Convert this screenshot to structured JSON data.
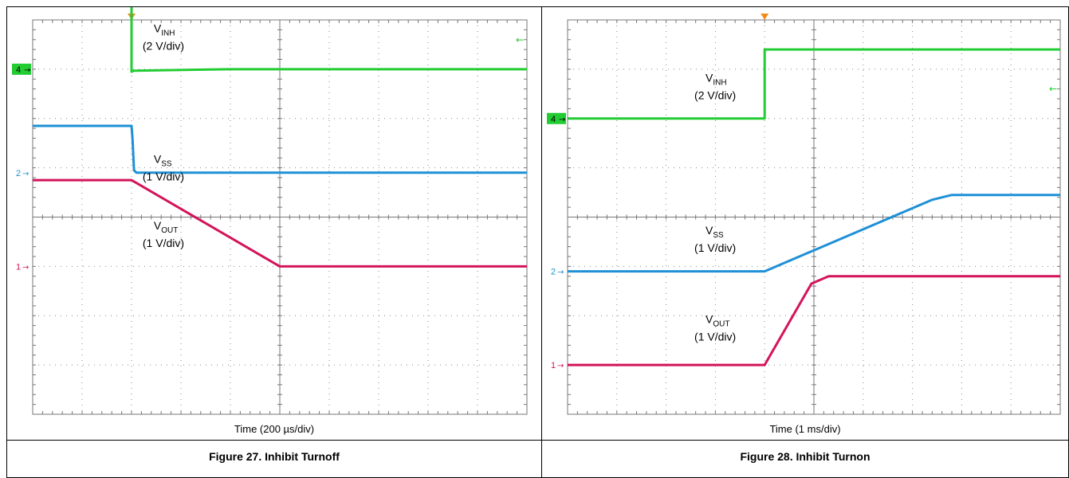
{
  "chart_data": [
    {
      "type": "line",
      "title": "Figure 27. Inhibit Turnoff",
      "xlabel": "Time (200 µs/div)",
      "x_divisions": 10,
      "y_divisions": 8,
      "trigger_position_div": 2,
      "channel_markers": [
        {
          "label": "4",
          "level_div": 1.0,
          "color": "#22cc33"
        },
        {
          "label": "2",
          "level_div": 3.1,
          "color": "#1e90d6"
        },
        {
          "label": "1",
          "level_div": 5.0,
          "color": "#d4145a"
        }
      ],
      "series": [
        {
          "name": "V_INH",
          "scale": "(2 V/div)",
          "color": "#22cc33",
          "x": [
            0,
            2,
            2,
            2.05,
            4,
            10
          ],
          "y": [
            -0.35,
            -0.35,
            1.05,
            1.03,
            1.0,
            1.0
          ]
        },
        {
          "name": "V_SS",
          "scale": "(1 V/div)",
          "color": "#1e90d6",
          "x": [
            0,
            2,
            2.02,
            2.05,
            2.1,
            10
          ],
          "y": [
            2.15,
            2.15,
            2.4,
            3.05,
            3.1,
            3.1
          ]
        },
        {
          "name": "V_OUT",
          "scale": "(1 V/div)",
          "color": "#d4145a",
          "x": [
            0,
            2,
            5,
            10
          ],
          "y": [
            3.25,
            3.25,
            5.0,
            5.0
          ]
        }
      ],
      "annotations": [
        {
          "sym": "V",
          "sub": "INH",
          "scale": "(2 V/div)",
          "x_div": 2.45,
          "y_div": 0.25
        },
        {
          "sym": "V",
          "sub": "SS",
          "scale": "(1 V/div)",
          "x_div": 2.45,
          "y_div": 2.9
        },
        {
          "sym": "V",
          "sub": "OUT",
          "scale": "(1 V/div)",
          "x_div": 2.45,
          "y_div": 4.25
        }
      ]
    },
    {
      "type": "line",
      "title": "Figure 28. Inhibit Turnon",
      "xlabel": "Time (1 ms/div)",
      "x_divisions": 10,
      "y_divisions": 8,
      "trigger_position_div": 4,
      "channel_markers": [
        {
          "label": "4",
          "level_div": 2.0,
          "color": "#22cc33"
        },
        {
          "label": "2",
          "level_div": 5.1,
          "color": "#1e90d6"
        },
        {
          "label": "1",
          "level_div": 7.0,
          "color": "#d4145a"
        }
      ],
      "series": [
        {
          "name": "V_INH",
          "scale": "(2 V/div)",
          "color": "#22cc33",
          "x": [
            0,
            4,
            4,
            10
          ],
          "y": [
            2.0,
            2.0,
            0.6,
            0.6
          ]
        },
        {
          "name": "V_SS",
          "scale": "(1 V/div)",
          "color": "#1e90d6",
          "x": [
            0,
            4,
            7.4,
            7.8,
            10
          ],
          "y": [
            5.1,
            5.1,
            3.65,
            3.55,
            3.55
          ]
        },
        {
          "name": "V_OUT",
          "scale": "(1 V/div)",
          "color": "#d4145a",
          "x": [
            0,
            4,
            4.95,
            5.3,
            10
          ],
          "y": [
            7.0,
            7.0,
            5.35,
            5.2,
            5.2
          ]
        }
      ],
      "annotations": [
        {
          "sym": "V",
          "sub": "INH",
          "scale": "(2 V/div)",
          "x_div": 2.8,
          "y_div": 1.25
        },
        {
          "sym": "V",
          "sub": "SS",
          "scale": "(1 V/div)",
          "x_div": 2.8,
          "y_div": 4.35
        },
        {
          "sym": "V",
          "sub": "OUT",
          "scale": "(1 V/div)",
          "x_div": 2.8,
          "y_div": 6.15
        }
      ]
    }
  ]
}
